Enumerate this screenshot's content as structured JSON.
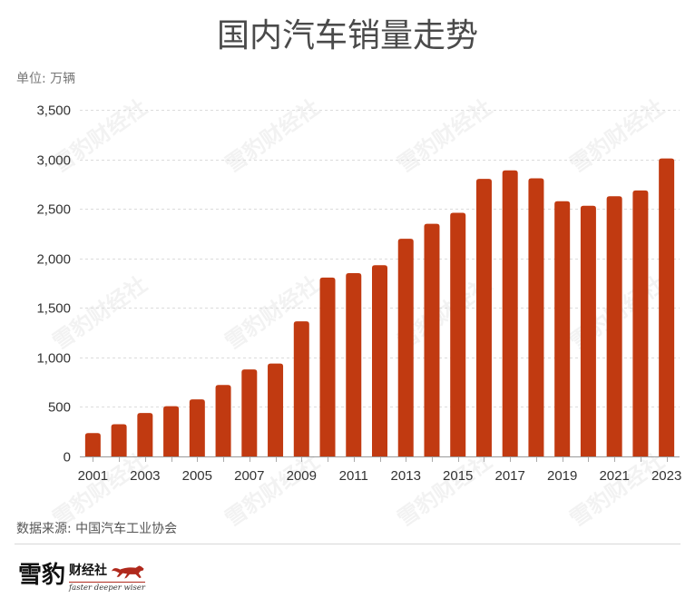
{
  "chart_data": {
    "type": "bar",
    "title": "国内汽车销量走势",
    "ylabel": "单位: 万辆",
    "xlabel": "",
    "x": [
      2001,
      2002,
      2003,
      2004,
      2005,
      2006,
      2007,
      2008,
      2009,
      2010,
      2011,
      2012,
      2013,
      2014,
      2015,
      2016,
      2017,
      2018,
      2019,
      2020,
      2021,
      2022,
      2023
    ],
    "values": [
      236,
      325,
      439,
      507,
      576,
      722,
      879,
      938,
      1364,
      1806,
      1851,
      1931,
      2198,
      2349,
      2460,
      2803,
      2888,
      2808,
      2577,
      2531,
      2627,
      2686,
      3009
    ],
    "ylim": [
      0,
      3500
    ],
    "yticks": [
      0,
      500,
      1000,
      1500,
      2000,
      2500,
      3000,
      3500
    ],
    "ytick_labels": [
      "0",
      "500",
      "1,000",
      "1,500",
      "2,000",
      "2,500",
      "3,000",
      "3,500"
    ],
    "xticks": [
      2001,
      2003,
      2005,
      2007,
      2009,
      2011,
      2013,
      2015,
      2017,
      2019,
      2021,
      2023
    ],
    "xtick_labels": [
      "2001",
      "2003",
      "2005",
      "2007",
      "2009",
      "2011",
      "2013",
      "2015",
      "2017",
      "2019",
      "2021",
      "2023"
    ],
    "grid": true,
    "legend": "none"
  },
  "source": "数据来源: 中国汽车工业协会",
  "watermark": "雪豹财经社",
  "logo": {
    "name_big": "雪豹",
    "name_small": "财经社",
    "slogan": "faster deeper wiser"
  },
  "colors": {
    "bar": "#c13a11",
    "grid": "#dcdcdc",
    "axis": "#9a9a9a",
    "text": "#333333",
    "title": "#4a4a4a",
    "logo_accent": "#b0291c"
  }
}
